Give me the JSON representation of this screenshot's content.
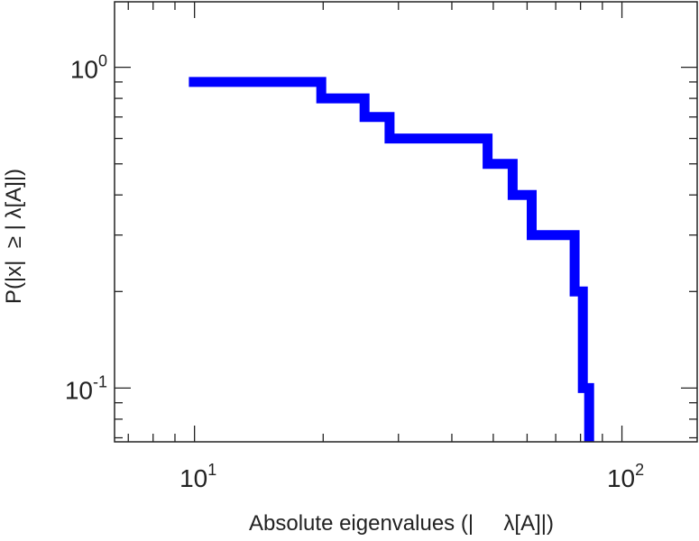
{
  "chart_data": {
    "type": "line",
    "step": true,
    "title": "",
    "xlabel": "Absolute eigenvalues (|     λ[A]|)",
    "ylabel": "P(|x|  ≥ | λ[A]|)",
    "xscale": "log",
    "yscale": "log",
    "xlim": [
      6.5,
      150
    ],
    "ylim": [
      0.068,
      1.6
    ],
    "x_ticks": [
      {
        "base": "10",
        "exp": "1",
        "value": 10
      },
      {
        "base": "10",
        "exp": "2",
        "value": 100
      }
    ],
    "y_ticks": [
      {
        "base": "10",
        "exp": "0",
        "value": 1
      },
      {
        "base": "10",
        "exp": "-1",
        "value": 0.1
      }
    ],
    "grid": false,
    "legend": null,
    "series": [
      {
        "color": "#0000ff",
        "x": [
          9.7,
          19.8,
          19.8,
          25.0,
          25.0,
          28.6,
          28.6,
          48.5,
          48.5,
          55.5,
          55.5,
          61.5,
          61.5,
          77.5,
          77.5,
          81.0,
          81.0,
          83.8,
          83.8
        ],
        "y": [
          0.9,
          0.9,
          0.8,
          0.8,
          0.7,
          0.7,
          0.6,
          0.6,
          0.5,
          0.5,
          0.4,
          0.4,
          0.3,
          0.3,
          0.2,
          0.2,
          0.1,
          0.1,
          0.068
        ]
      }
    ]
  }
}
